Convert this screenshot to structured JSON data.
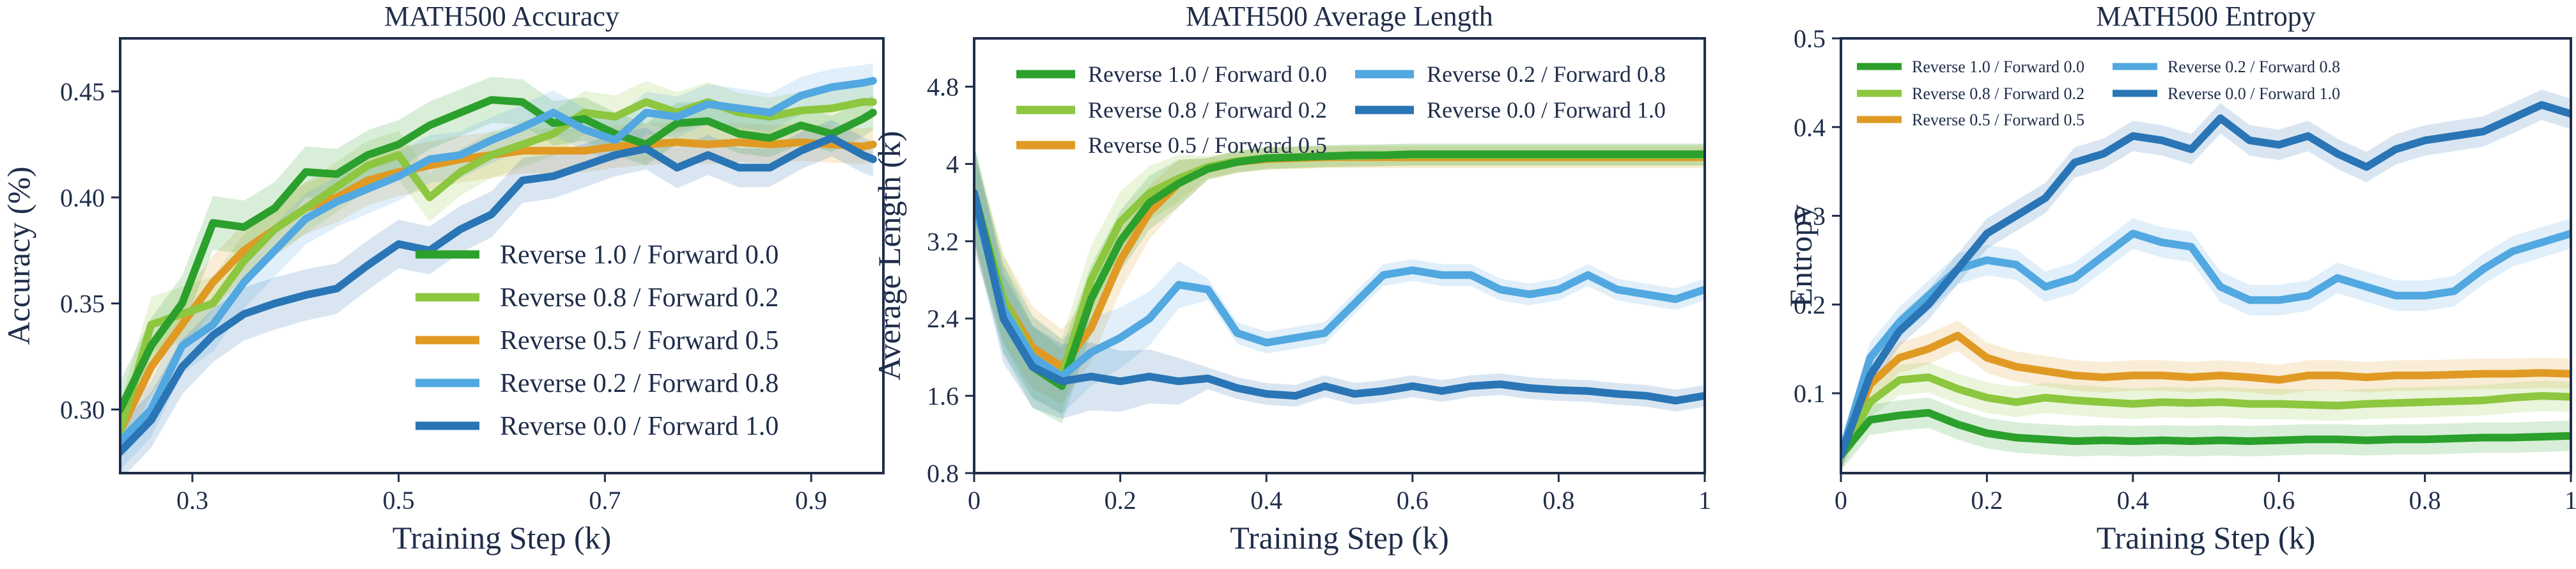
{
  "chart_data": [
    {
      "type": "line",
      "title": "MATH500 Accuracy",
      "xlabel": "Training Step (k)",
      "ylabel": "Accuracy (%)",
      "xlim": [
        0.23,
        0.97
      ],
      "ylim": [
        0.27,
        0.475
      ],
      "xticks": [
        0.3,
        0.5,
        0.7,
        0.9
      ],
      "xtick_labels": [
        "0.3",
        "0.5",
        "0.7",
        "0.9"
      ],
      "yticks": [
        0.3,
        0.35,
        0.4,
        0.45
      ],
      "ytick_labels": [
        "0.30",
        "0.35",
        "0.40",
        "0.45"
      ],
      "grid": false,
      "legend": "bottom-right",
      "x": [
        0.23,
        0.26,
        0.29,
        0.32,
        0.35,
        0.38,
        0.41,
        0.44,
        0.47,
        0.5,
        0.53,
        0.56,
        0.59,
        0.62,
        0.65,
        0.68,
        0.71,
        0.74,
        0.77,
        0.8,
        0.83,
        0.86,
        0.89,
        0.92,
        0.95,
        0.96
      ],
      "series": [
        {
          "name": "Reverse 1.0 / Forward 0.0",
          "color": "#2ca02c",
          "values": [
            0.3,
            0.33,
            0.35,
            0.388,
            0.386,
            0.395,
            0.412,
            0.411,
            0.42,
            0.425,
            0.434,
            0.44,
            0.446,
            0.445,
            0.435,
            0.437,
            0.43,
            0.425,
            0.435,
            0.436,
            0.43,
            0.428,
            0.434,
            0.43,
            0.437,
            0.44
          ]
        },
        {
          "name": "Reverse 0.8 / Forward 0.2",
          "color": "#8dc63f",
          "values": [
            0.29,
            0.34,
            0.345,
            0.35,
            0.37,
            0.385,
            0.395,
            0.405,
            0.415,
            0.42,
            0.4,
            0.412,
            0.42,
            0.425,
            0.43,
            0.44,
            0.438,
            0.445,
            0.44,
            0.445,
            0.44,
            0.438,
            0.441,
            0.442,
            0.445,
            0.445
          ]
        },
        {
          "name": "Reverse 0.5 / Forward 0.5",
          "color": "#e09a24",
          "values": [
            0.29,
            0.32,
            0.34,
            0.36,
            0.375,
            0.385,
            0.395,
            0.4,
            0.408,
            0.412,
            0.415,
            0.418,
            0.42,
            0.422,
            0.422,
            0.422,
            0.424,
            0.425,
            0.426,
            0.425,
            0.426,
            0.425,
            0.426,
            0.425,
            0.424,
            0.425
          ]
        },
        {
          "name": "Reverse 0.2 / Forward 0.8",
          "color": "#52a8e0",
          "values": [
            0.285,
            0.3,
            0.33,
            0.34,
            0.36,
            0.375,
            0.39,
            0.398,
            0.404,
            0.41,
            0.418,
            0.42,
            0.427,
            0.433,
            0.44,
            0.432,
            0.427,
            0.44,
            0.438,
            0.444,
            0.442,
            0.44,
            0.448,
            0.452,
            0.454,
            0.455
          ]
        },
        {
          "name": "Reverse 0.0 / Forward 1.0",
          "color": "#2a75b5",
          "values": [
            0.28,
            0.295,
            0.32,
            0.335,
            0.345,
            0.35,
            0.354,
            0.357,
            0.368,
            0.378,
            0.375,
            0.385,
            0.392,
            0.408,
            0.41,
            0.415,
            0.42,
            0.423,
            0.414,
            0.42,
            0.414,
            0.414,
            0.422,
            0.428,
            0.42,
            0.418
          ]
        }
      ]
    },
    {
      "type": "line",
      "title": "MATH500 Average Length",
      "xlabel": "Training Step (k)",
      "ylabel": "Average Length (k)",
      "xlim": [
        0,
        1
      ],
      "ylim": [
        0.8,
        5.3
      ],
      "xticks": [
        0,
        0.2,
        0.4,
        0.6,
        0.8,
        1
      ],
      "xtick_labels": [
        "0",
        "0.2",
        "0.4",
        "0.6",
        "0.8",
        "1"
      ],
      "yticks": [
        0.8,
        1.6,
        2.4,
        3.2,
        4,
        4.8
      ],
      "ytick_labels": [
        "0.8",
        "1.6",
        "2.4",
        "3.2",
        "4",
        "4.8"
      ],
      "grid": false,
      "legend": "top",
      "x": [
        0,
        0.04,
        0.08,
        0.12,
        0.16,
        0.2,
        0.24,
        0.28,
        0.32,
        0.36,
        0.4,
        0.44,
        0.48,
        0.52,
        0.56,
        0.6,
        0.64,
        0.68,
        0.72,
        0.76,
        0.8,
        0.84,
        0.88,
        0.92,
        0.96,
        1.0
      ],
      "series": [
        {
          "name": "Reverse 1.0 / Forward 0.0",
          "color": "#2ca02c",
          "values": [
            3.7,
            2.5,
            1.9,
            1.7,
            2.6,
            3.2,
            3.6,
            3.8,
            3.95,
            4.02,
            4.06,
            4.07,
            4.08,
            4.09,
            4.09,
            4.1,
            4.1,
            4.1,
            4.1,
            4.1,
            4.1,
            4.1,
            4.1,
            4.1,
            4.1,
            4.1
          ]
        },
        {
          "name": "Reverse 0.8 / Forward 0.2",
          "color": "#8dc63f",
          "values": [
            3.7,
            2.6,
            2.0,
            1.8,
            2.8,
            3.4,
            3.7,
            3.85,
            3.97,
            4.03,
            4.06,
            4.07,
            4.08,
            4.08,
            4.09,
            4.09,
            4.09,
            4.09,
            4.09,
            4.09,
            4.09,
            4.09,
            4.09,
            4.09,
            4.09,
            4.09
          ]
        },
        {
          "name": "Reverse 0.5 / Forward 0.5",
          "color": "#e09a24",
          "values": [
            3.6,
            2.6,
            2.1,
            1.9,
            2.3,
            3.0,
            3.5,
            3.8,
            3.95,
            4.02,
            4.05,
            4.06,
            4.07,
            4.07,
            4.07,
            4.07,
            4.07,
            4.07,
            4.07,
            4.07,
            4.07,
            4.07,
            4.07,
            4.07,
            4.07,
            4.07
          ]
        },
        {
          "name": "Reverse 0.2 / Forward 0.8",
          "color": "#52a8e0",
          "values": [
            3.6,
            2.5,
            2.0,
            1.8,
            2.05,
            2.2,
            2.4,
            2.75,
            2.7,
            2.25,
            2.15,
            2.2,
            2.25,
            2.55,
            2.85,
            2.9,
            2.85,
            2.85,
            2.7,
            2.65,
            2.7,
            2.85,
            2.7,
            2.65,
            2.6,
            2.7
          ]
        },
        {
          "name": "Reverse 0.0 / Forward 1.0",
          "color": "#2a75b5",
          "values": [
            3.7,
            2.4,
            1.9,
            1.75,
            1.8,
            1.75,
            1.8,
            1.75,
            1.78,
            1.68,
            1.62,
            1.6,
            1.7,
            1.62,
            1.65,
            1.7,
            1.65,
            1.7,
            1.72,
            1.68,
            1.66,
            1.65,
            1.62,
            1.6,
            1.55,
            1.6
          ]
        }
      ]
    },
    {
      "type": "line",
      "title": "MATH500 Entropy",
      "xlabel": "Training Step (k)",
      "ylabel": "Entropy",
      "xlim": [
        0,
        1
      ],
      "ylim": [
        0.01,
        0.5
      ],
      "xticks": [
        0,
        0.2,
        0.4,
        0.6,
        0.8,
        1
      ],
      "xtick_labels": [
        "0",
        "0.2",
        "0.4",
        "0.6",
        "0.8",
        "1"
      ],
      "yticks": [
        0.1,
        0.2,
        0.3,
        0.4,
        0.5
      ],
      "ytick_labels": [
        "0.1",
        "0.2",
        "0.3",
        "0.4",
        "0.5"
      ],
      "grid": false,
      "legend": "top-left",
      "x": [
        0,
        0.04,
        0.08,
        0.12,
        0.16,
        0.2,
        0.24,
        0.28,
        0.32,
        0.36,
        0.4,
        0.44,
        0.48,
        0.52,
        0.56,
        0.6,
        0.64,
        0.68,
        0.72,
        0.76,
        0.8,
        0.84,
        0.88,
        0.92,
        0.96,
        1.0
      ],
      "series": [
        {
          "name": "Reverse 1.0 / Forward 0.0",
          "color": "#2ca02c",
          "values": [
            0.03,
            0.07,
            0.075,
            0.078,
            0.065,
            0.055,
            0.05,
            0.048,
            0.046,
            0.047,
            0.046,
            0.047,
            0.046,
            0.047,
            0.046,
            0.047,
            0.048,
            0.048,
            0.047,
            0.048,
            0.048,
            0.049,
            0.05,
            0.05,
            0.051,
            0.052
          ]
        },
        {
          "name": "Reverse 0.8 / Forward 0.2",
          "color": "#8dc63f",
          "values": [
            0.03,
            0.09,
            0.115,
            0.118,
            0.105,
            0.095,
            0.09,
            0.095,
            0.092,
            0.09,
            0.088,
            0.09,
            0.089,
            0.09,
            0.088,
            0.088,
            0.087,
            0.086,
            0.088,
            0.089,
            0.09,
            0.091,
            0.092,
            0.095,
            0.097,
            0.096
          ]
        },
        {
          "name": "Reverse 0.5 / Forward 0.5",
          "color": "#e09a24",
          "values": [
            0.03,
            0.11,
            0.14,
            0.15,
            0.165,
            0.14,
            0.13,
            0.125,
            0.12,
            0.118,
            0.12,
            0.12,
            0.118,
            0.12,
            0.118,
            0.115,
            0.12,
            0.12,
            0.118,
            0.12,
            0.12,
            0.121,
            0.122,
            0.122,
            0.123,
            0.122
          ]
        },
        {
          "name": "Reverse 0.2 / Forward 0.8",
          "color": "#52a8e0",
          "values": [
            0.03,
            0.14,
            0.18,
            0.21,
            0.24,
            0.25,
            0.245,
            0.22,
            0.23,
            0.255,
            0.28,
            0.27,
            0.265,
            0.22,
            0.205,
            0.205,
            0.21,
            0.23,
            0.22,
            0.21,
            0.21,
            0.215,
            0.24,
            0.26,
            0.27,
            0.28
          ]
        },
        {
          "name": "Reverse 0.0 / Forward 1.0",
          "color": "#2a75b5",
          "values": [
            0.03,
            0.12,
            0.17,
            0.2,
            0.24,
            0.28,
            0.3,
            0.32,
            0.36,
            0.37,
            0.39,
            0.385,
            0.375,
            0.41,
            0.385,
            0.38,
            0.39,
            0.37,
            0.355,
            0.375,
            0.385,
            0.39,
            0.395,
            0.41,
            0.425,
            0.415
          ]
        }
      ]
    }
  ]
}
